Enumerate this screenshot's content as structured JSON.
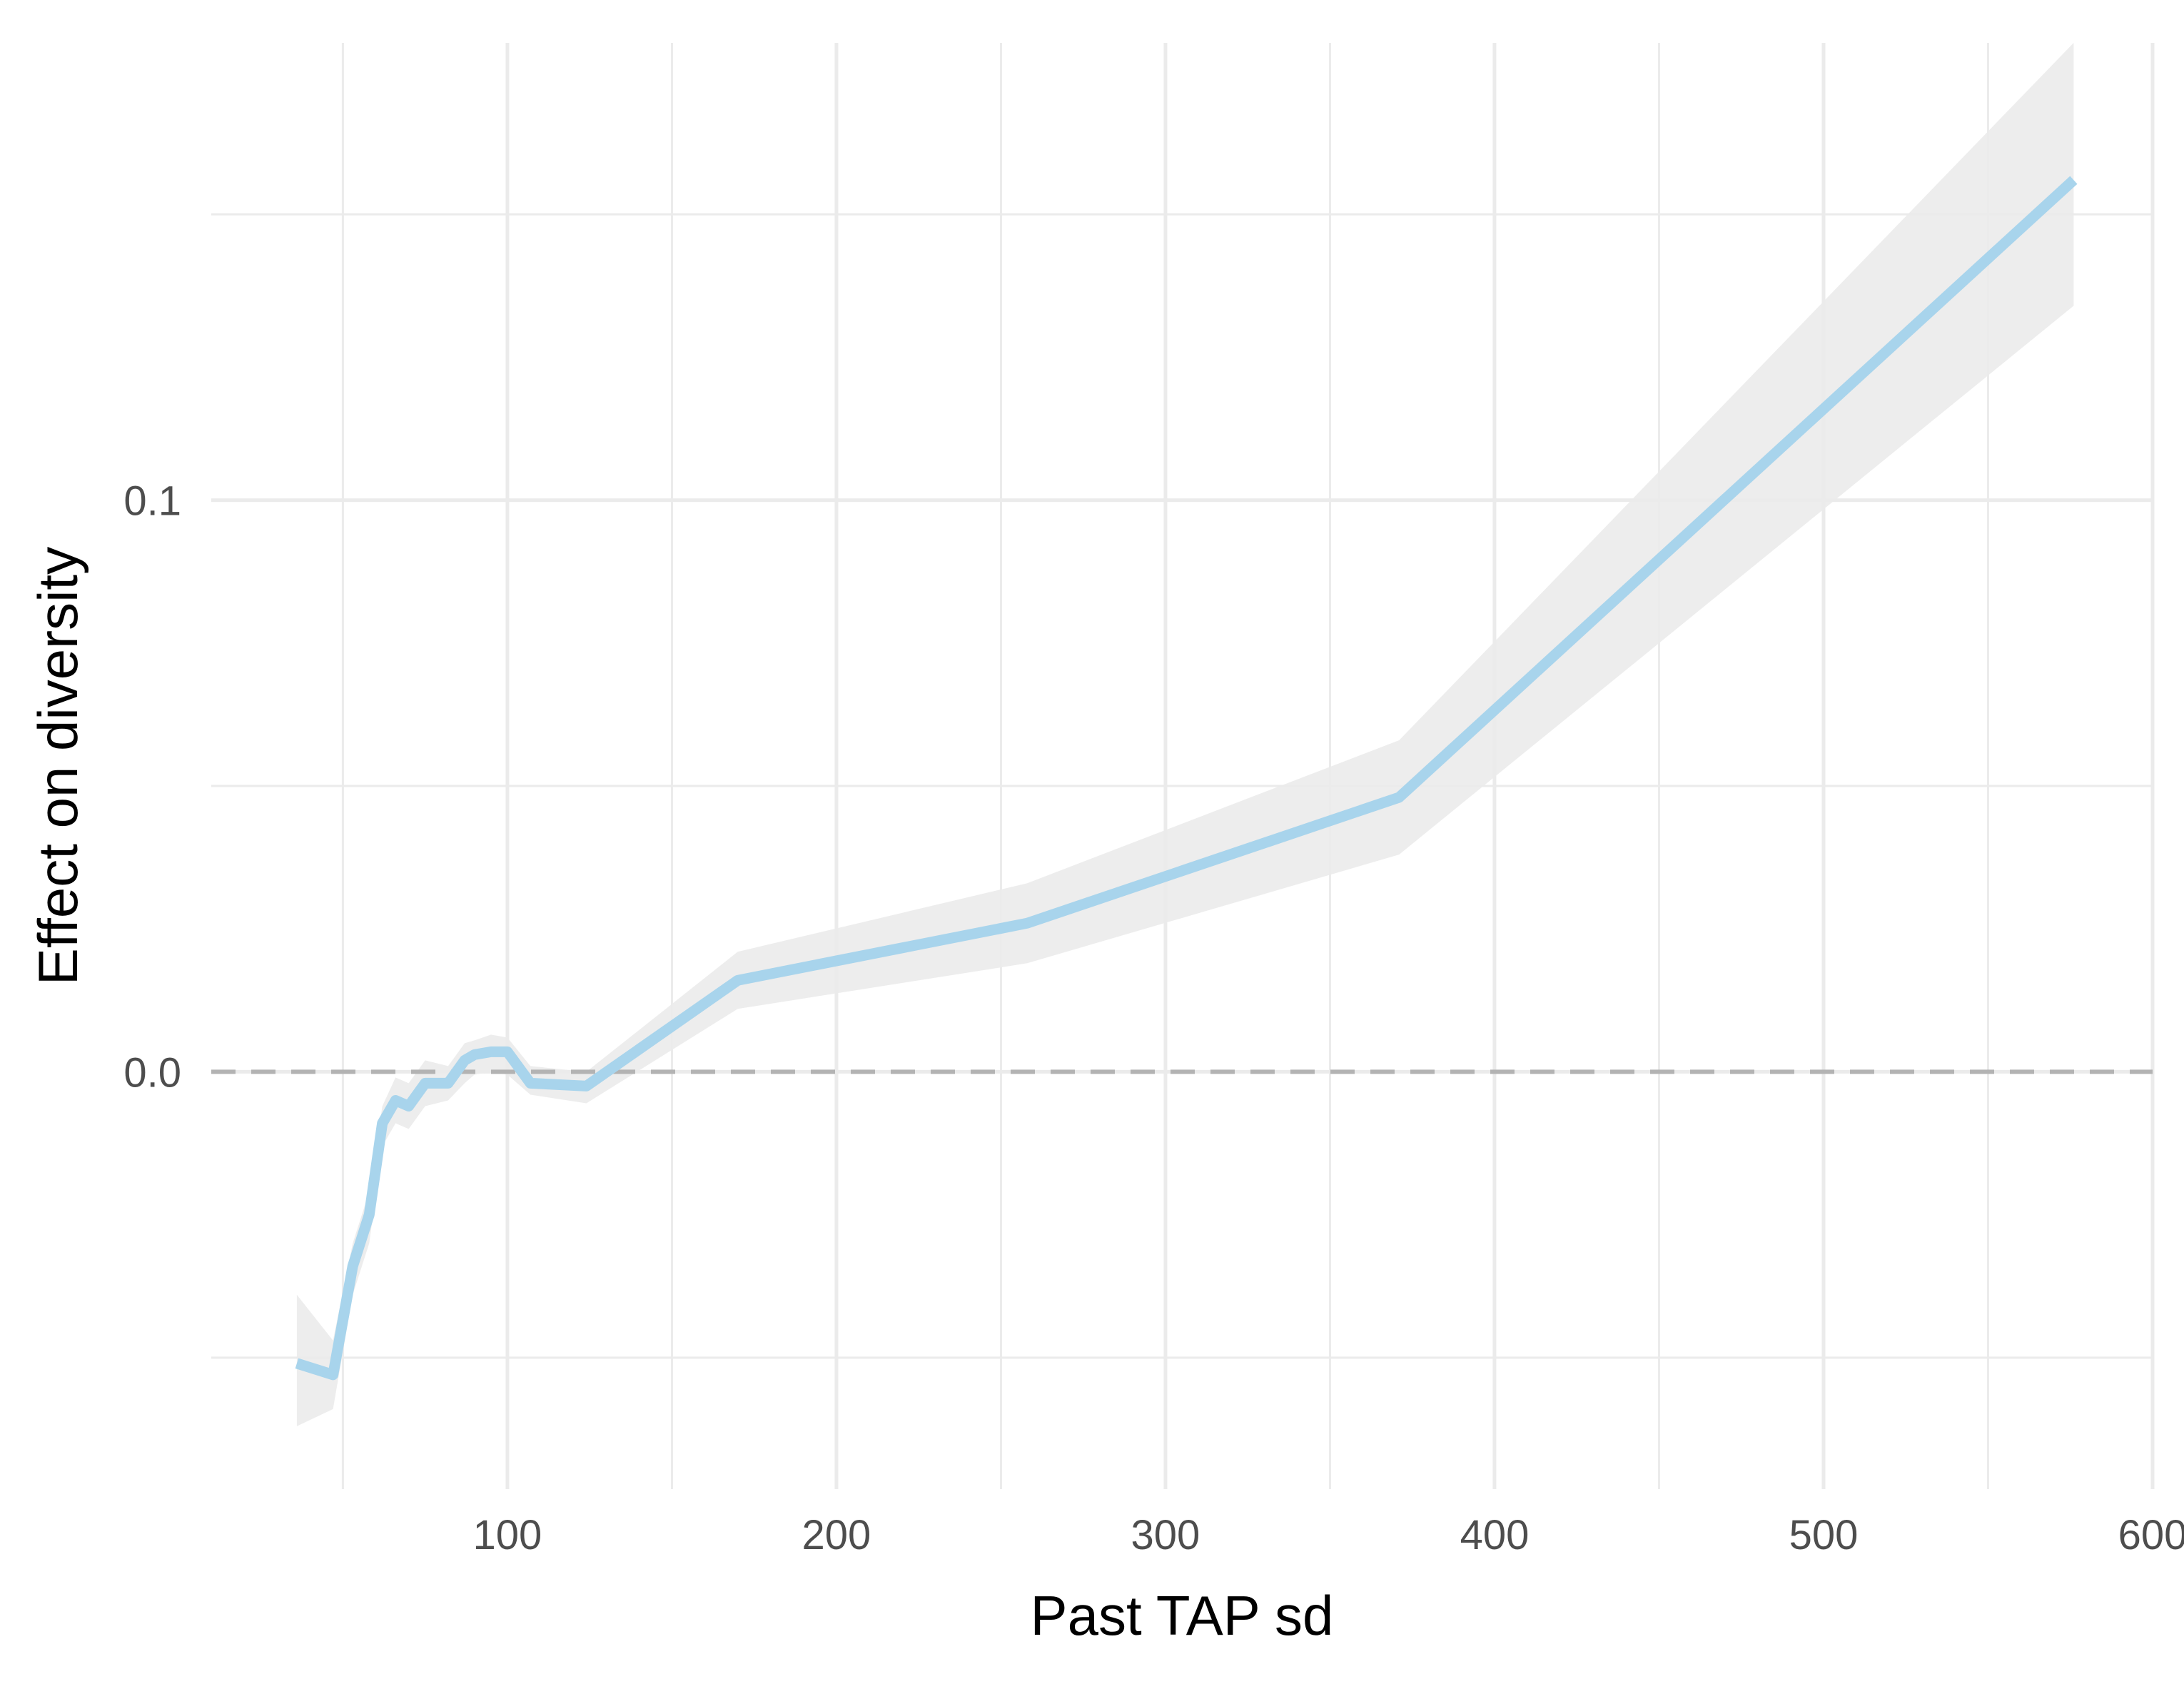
{
  "chart_data": {
    "type": "line",
    "xlabel": "Past TAP sd",
    "ylabel": "Effect on diversity",
    "xlim": [
      10,
      600
    ],
    "ylim": [
      -0.073,
      0.18
    ],
    "x_major_ticks": [
      100,
      200,
      300,
      400,
      500,
      600
    ],
    "x_minor_ticks": [
      50,
      150,
      250,
      350,
      450,
      550
    ],
    "y_major_ticks": [
      0.0,
      0.1
    ],
    "y_tick_labels": [
      "0.0",
      "0.1"
    ],
    "y_minor_ticks": [
      -0.05,
      0.05,
      0.15
    ],
    "grid": true,
    "legend": "none",
    "reference_line": {
      "y": 0,
      "style": "dashed",
      "color": "#b3b3b3"
    },
    "series": [
      {
        "color": "#a8d4ec",
        "band_color": "#ebebeb",
        "x": [
          36,
          47,
          53,
          58,
          62,
          66,
          70,
          75,
          82,
          87,
          90,
          95,
          100,
          107,
          124,
          170,
          258,
          371,
          576
        ],
        "y": [
          -0.051,
          -0.053,
          -0.034,
          -0.025,
          -0.009,
          -0.005,
          -0.006,
          -0.002,
          -0.002,
          0.002,
          0.003,
          0.0035,
          0.0035,
          -0.002,
          -0.0025,
          0.016,
          0.026,
          0.048,
          0.156
        ],
        "lower": [
          -0.062,
          -0.059,
          -0.039,
          -0.03,
          -0.013,
          -0.009,
          -0.01,
          -0.006,
          -0.005,
          -0.002,
          -0.0005,
          0.0,
          -0.0005,
          -0.004,
          -0.0055,
          0.011,
          0.019,
          0.038,
          0.134
        ],
        "upper": [
          -0.039,
          -0.047,
          -0.03,
          -0.021,
          -0.006,
          -0.001,
          -0.002,
          0.002,
          0.001,
          0.005,
          0.0055,
          0.0065,
          0.006,
          0.001,
          0.0,
          0.021,
          0.033,
          0.058,
          0.18
        ]
      }
    ]
  }
}
